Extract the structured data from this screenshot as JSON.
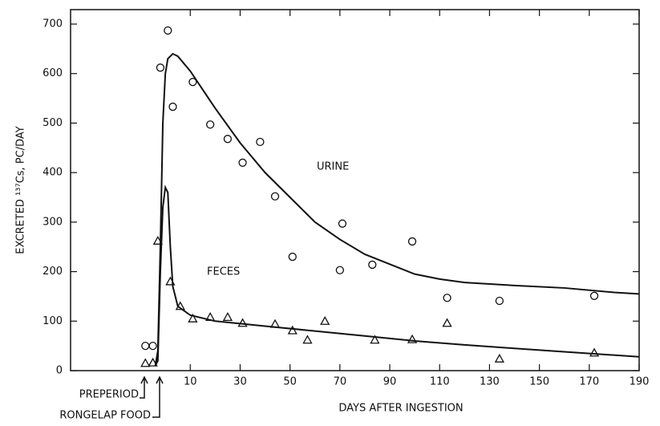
{
  "chart_data": {
    "type": "scatter",
    "xlabel": "DAYS AFTER INGESTION",
    "ylabel": "EXCRETED ¹³⁷Cs, PC/DAY",
    "annotations": [
      "PREPERIOD",
      "RONGELAP FOOD"
    ],
    "xlim": [
      -38,
      190
    ],
    "ylim": [
      0,
      700
    ],
    "xticks": [
      10,
      30,
      50,
      70,
      90,
      110,
      130,
      150,
      170,
      190
    ],
    "yticks": [
      0,
      100,
      200,
      300,
      400,
      500,
      600,
      700
    ],
    "color": "#111111",
    "series": [
      {
        "name": "URINE",
        "marker": "circle",
        "x": [
          -8,
          -5,
          -2,
          1,
          3,
          11,
          18,
          25,
          31,
          38,
          44,
          51,
          70,
          71,
          83,
          99,
          113,
          134,
          172
        ],
        "values": [
          50,
          50,
          612,
          687,
          533,
          583,
          497,
          468,
          420,
          462,
          352,
          230,
          203,
          297,
          214,
          261,
          147,
          141,
          151
        ],
        "fit_x": [
          -4,
          -3,
          -2,
          -1,
          0,
          1,
          3,
          5,
          10,
          20,
          30,
          40,
          50,
          60,
          70,
          80,
          90,
          100,
          110,
          120,
          140,
          160,
          180,
          190
        ],
        "fit_values": [
          10,
          40,
          250,
          500,
          600,
          630,
          640,
          635,
          605,
          530,
          460,
          400,
          350,
          300,
          265,
          235,
          215,
          195,
          185,
          178,
          172,
          167,
          158,
          155
        ]
      },
      {
        "name": "FECES",
        "marker": "triangle",
        "x": [
          -8,
          -5,
          -3,
          2,
          6,
          11,
          18,
          25,
          31,
          44,
          51,
          57,
          64,
          84,
          99,
          113,
          134,
          172
        ],
        "values": [
          15,
          16,
          262,
          180,
          130,
          105,
          108,
          108,
          96,
          94,
          81,
          62,
          100,
          62,
          63,
          96,
          24,
          36
        ],
        "fit_x": [
          -4,
          -3,
          -2,
          -1,
          0,
          1,
          2,
          3,
          5,
          10,
          20,
          40,
          60,
          80,
          100,
          120,
          140,
          160,
          190
        ],
        "fit_values": [
          10,
          20,
          200,
          330,
          370,
          360,
          250,
          170,
          130,
          112,
          100,
          90,
          80,
          70,
          60,
          52,
          45,
          38,
          28
        ]
      }
    ]
  }
}
